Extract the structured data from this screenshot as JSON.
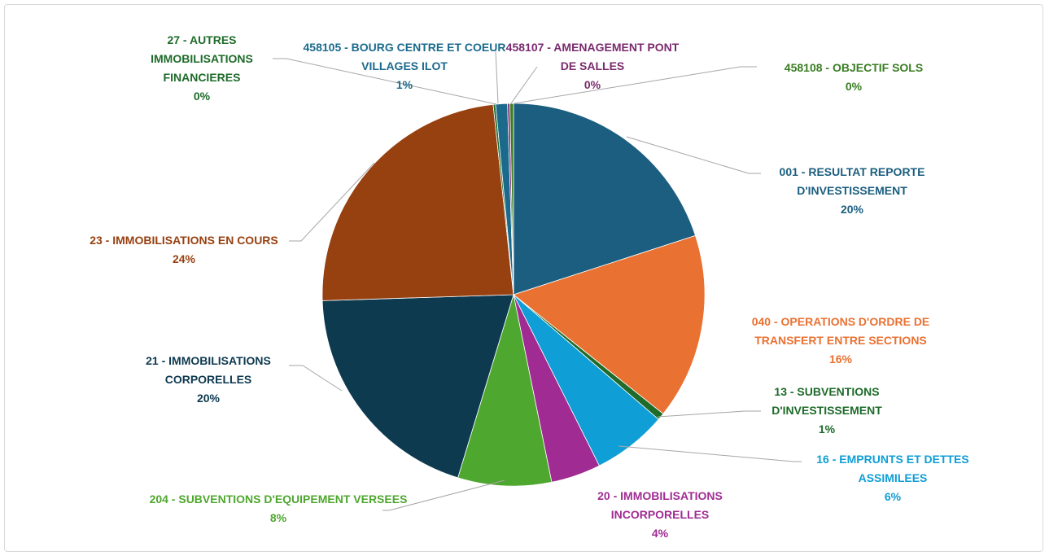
{
  "chart_data": {
    "type": "pie",
    "categories": [
      "001 - RESULTAT REPORTE D'INVESTISSEMENT",
      "040 - OPERATIONS D'ORDRE DE TRANSFERT ENTRE SECTIONS",
      "13 - SUBVENTIONS D'INVESTISSEMENT",
      "16 - EMPRUNTS ET DETTES ASSIMILEES",
      "20 - IMMOBILISATIONS INCORPORELLES",
      "204 - SUBVENTIONS D'EQUIPEMENT VERSEES",
      "21 - IMMOBILISATIONS CORPORELLES",
      "23 - IMMOBILISATIONS EN COURS",
      "27 - AUTRES IMMOBILISATIONS FINANCIERES",
      "458105 - BOURG CENTRE ET COEUR VILLAGES ILOT",
      "458107 - AMENAGEMENT PONT DE SALLES",
      "458108 - OBJECTIF SOLS"
    ],
    "values": [
      20.0,
      15.7,
      0.6,
      6.3,
      4.2,
      7.9,
      19.8,
      23.8,
      0.2,
      1.0,
      0.2,
      0.3
    ],
    "value_labels": [
      "20%",
      "16%",
      "1%",
      "6%",
      "4%",
      "8%",
      "20%",
      "24%",
      "0%",
      "1%",
      "0%",
      "0%"
    ],
    "colors": [
      "#1b5e80",
      "#e97132",
      "#1e6b2a",
      "#0f9ed5",
      "#a02b93",
      "#4ea72e",
      "#0e3a50",
      "#974010",
      "#1e6b2a",
      "#1b6a8c",
      "#7a2a6e",
      "#3a7d22"
    ]
  }
}
